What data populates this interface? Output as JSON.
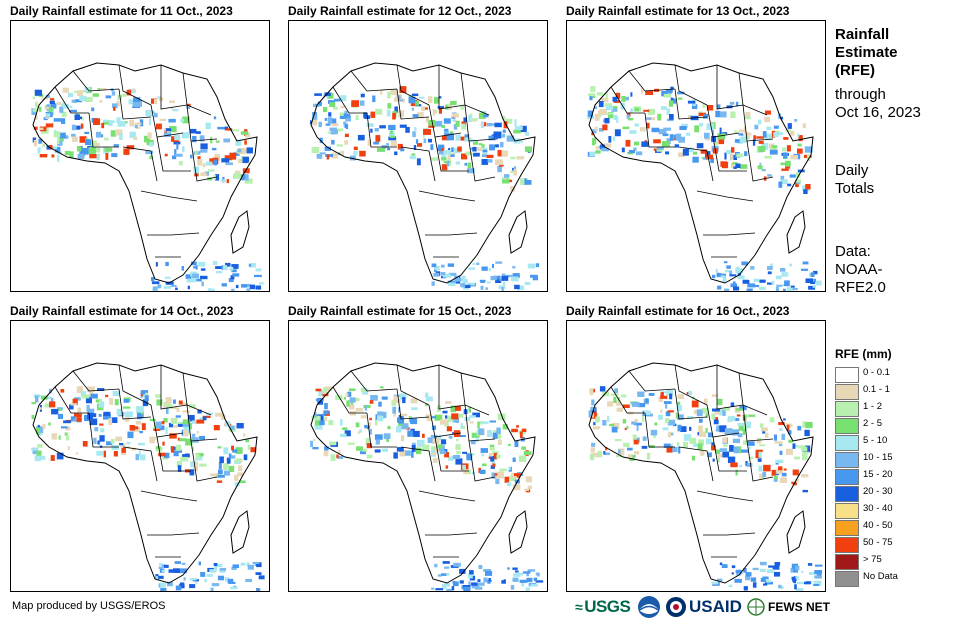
{
  "panels": [
    {
      "title": "Daily Rainfall estimate for 11 Oct., 2023"
    },
    {
      "title": "Daily Rainfall estimate for 12 Oct., 2023"
    },
    {
      "title": "Daily Rainfall estimate for 13 Oct., 2023"
    },
    {
      "title": "Daily Rainfall estimate for 14 Oct., 2023"
    },
    {
      "title": "Daily Rainfall estimate for 15 Oct., 2023"
    },
    {
      "title": "Daily Rainfall estimate for 16 Oct., 2023"
    }
  ],
  "side": {
    "title_line1": "Rainfall",
    "title_line2": "Estimate",
    "title_line3": "(RFE)",
    "through_line1": "through",
    "through_line2": "Oct 16, 2023",
    "daily_line1": "Daily",
    "daily_line2": "Totals",
    "data_line1": "Data:",
    "data_line2": "NOAA-",
    "data_line3": "RFE2.0"
  },
  "legend": {
    "title": "RFE (mm)",
    "items": [
      {
        "label": "0 - 0.1",
        "color": "#ffffff"
      },
      {
        "label": "0.1 - 1",
        "color": "#e8d8b8"
      },
      {
        "label": "1 - 2",
        "color": "#b8f0b0"
      },
      {
        "label": "2 - 5",
        "color": "#78e070"
      },
      {
        "label": "5 - 10",
        "color": "#a8e8f0"
      },
      {
        "label": "10 - 15",
        "color": "#78b8f0"
      },
      {
        "label": "15 - 20",
        "color": "#4898f0"
      },
      {
        "label": "20 - 30",
        "color": "#1860e0"
      },
      {
        "label": "30 - 40",
        "color": "#f8e088"
      },
      {
        "label": "40 - 50",
        "color": "#f8a020"
      },
      {
        "label": "50 - 75",
        "color": "#f04010"
      },
      {
        "label": "> 75",
        "color": "#a01818"
      },
      {
        "label": "No Data",
        "color": "#909090"
      }
    ]
  },
  "credit": "Map produced by USGS/EROS",
  "logos": {
    "usgs": "USGS",
    "usaid": "USAID",
    "fewsnet": "FEWS NET"
  }
}
